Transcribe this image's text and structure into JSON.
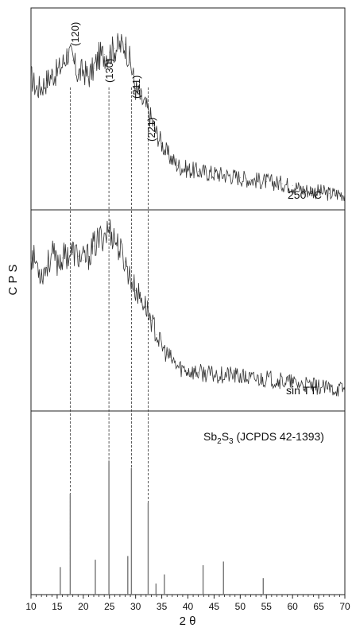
{
  "chart_data": {
    "type": "line",
    "xlabel": "2 θ",
    "ylabel": "C P S",
    "xlim": [
      10,
      70
    ],
    "xticks": [
      10,
      15,
      20,
      25,
      30,
      35,
      40,
      45,
      50,
      55,
      60,
      65,
      70
    ],
    "grid": false,
    "panels": [
      {
        "name": "250 °C",
        "label": "250 °C",
        "peak_labels": [
          "(120)",
          "(130)",
          "(211)",
          "(221)"
        ],
        "x": [
          10,
          11,
          12,
          13,
          14,
          15,
          16,
          17,
          18,
          19,
          20,
          21,
          22,
          23,
          24,
          25,
          26,
          27,
          28,
          29,
          30,
          31,
          32,
          33,
          34,
          35,
          36,
          37,
          38,
          40,
          42,
          45,
          48,
          50,
          52,
          55,
          58,
          60,
          62,
          65,
          67,
          70
        ],
        "y": [
          0.66,
          0.6,
          0.61,
          0.64,
          0.67,
          0.68,
          0.72,
          0.78,
          0.74,
          0.67,
          0.69,
          0.66,
          0.7,
          0.76,
          0.77,
          0.78,
          0.8,
          0.81,
          0.82,
          0.73,
          0.6,
          0.55,
          0.51,
          0.45,
          0.38,
          0.33,
          0.28,
          0.25,
          0.22,
          0.2,
          0.19,
          0.18,
          0.17,
          0.16,
          0.15,
          0.14,
          0.13,
          0.12,
          0.1,
          0.09,
          0.08,
          0.08
        ]
      },
      {
        "name": "sin TT",
        "label": "sin TT",
        "x": [
          10,
          11,
          12,
          13,
          14,
          15,
          16,
          17,
          18,
          19,
          20,
          21,
          22,
          23,
          24,
          25,
          26,
          27,
          28,
          29,
          30,
          31,
          32,
          33,
          34,
          35,
          36,
          37,
          38,
          40,
          42,
          45,
          48,
          50,
          52,
          55,
          58,
          60,
          62,
          65,
          67,
          70
        ],
        "y": [
          0.78,
          0.74,
          0.68,
          0.72,
          0.78,
          0.74,
          0.76,
          0.78,
          0.79,
          0.77,
          0.75,
          0.77,
          0.82,
          0.85,
          0.88,
          0.9,
          0.86,
          0.8,
          0.74,
          0.66,
          0.6,
          0.56,
          0.52,
          0.45,
          0.38,
          0.32,
          0.28,
          0.25,
          0.22,
          0.2,
          0.19,
          0.18,
          0.18,
          0.17,
          0.16,
          0.16,
          0.15,
          0.14,
          0.13,
          0.12,
          0.11,
          0.11
        ]
      },
      {
        "name": "Sb2S3 (JCPDS 42-1393)",
        "label_main": "Sb",
        "label_sub1": "2",
        "label_mid": "S",
        "label_sub2": "3",
        "label_tail": " (JCPDS 42-1393)",
        "type": "stick",
        "x": [
          15.6,
          17.5,
          22.3,
          24.9,
          28.5,
          29.2,
          32.4,
          33.9,
          35.5,
          42.9,
          46.8,
          54.4
        ],
        "y": [
          0.15,
          0.55,
          0.19,
          0.73,
          0.21,
          0.69,
          0.5,
          0.06,
          0.11,
          0.16,
          0.18,
          0.09
        ]
      }
    ],
    "guide_lines_x": [
      17.5,
      24.9,
      29.2,
      32.4
    ]
  }
}
